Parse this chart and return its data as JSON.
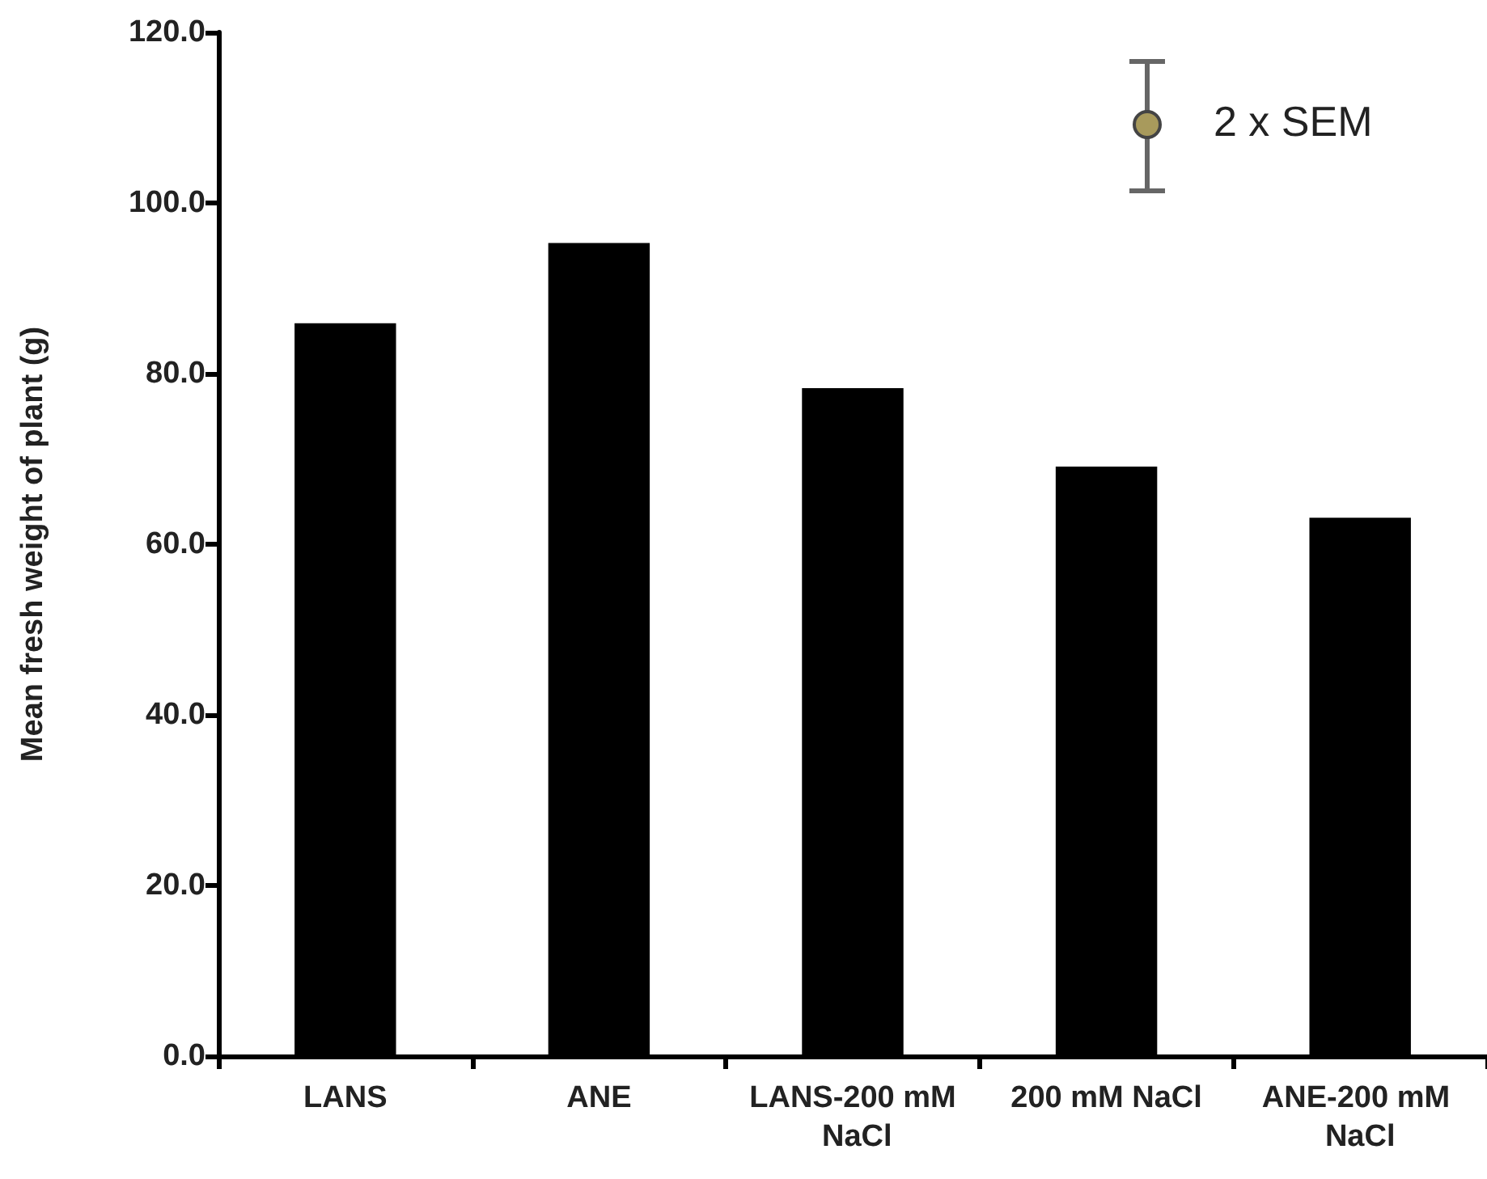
{
  "chart_data": {
    "type": "bar",
    "ylabel": "Mean fresh weight of plant (g)",
    "categories": [
      "LANS",
      "ANE",
      "LANS-200 mM NaCl",
      "200 mM NaCl",
      "ANE-200 mM NaCl"
    ],
    "values": [
      85.9,
      95.3,
      78.3,
      69.1,
      63.1
    ],
    "color": "#000000",
    "ylim": [
      0,
      120
    ],
    "yticks": [
      {
        "value": 0,
        "label": "0.0"
      },
      {
        "value": 20,
        "label": "20.0"
      },
      {
        "value": 40,
        "label": "40.0"
      },
      {
        "value": 60,
        "label": "60.0"
      },
      {
        "value": 80,
        "label": "80.0"
      },
      {
        "value": 100,
        "label": "100.0"
      },
      {
        "value": 120,
        "label": "120.0"
      }
    ],
    "annotations": [
      "2 x SEM"
    ]
  }
}
